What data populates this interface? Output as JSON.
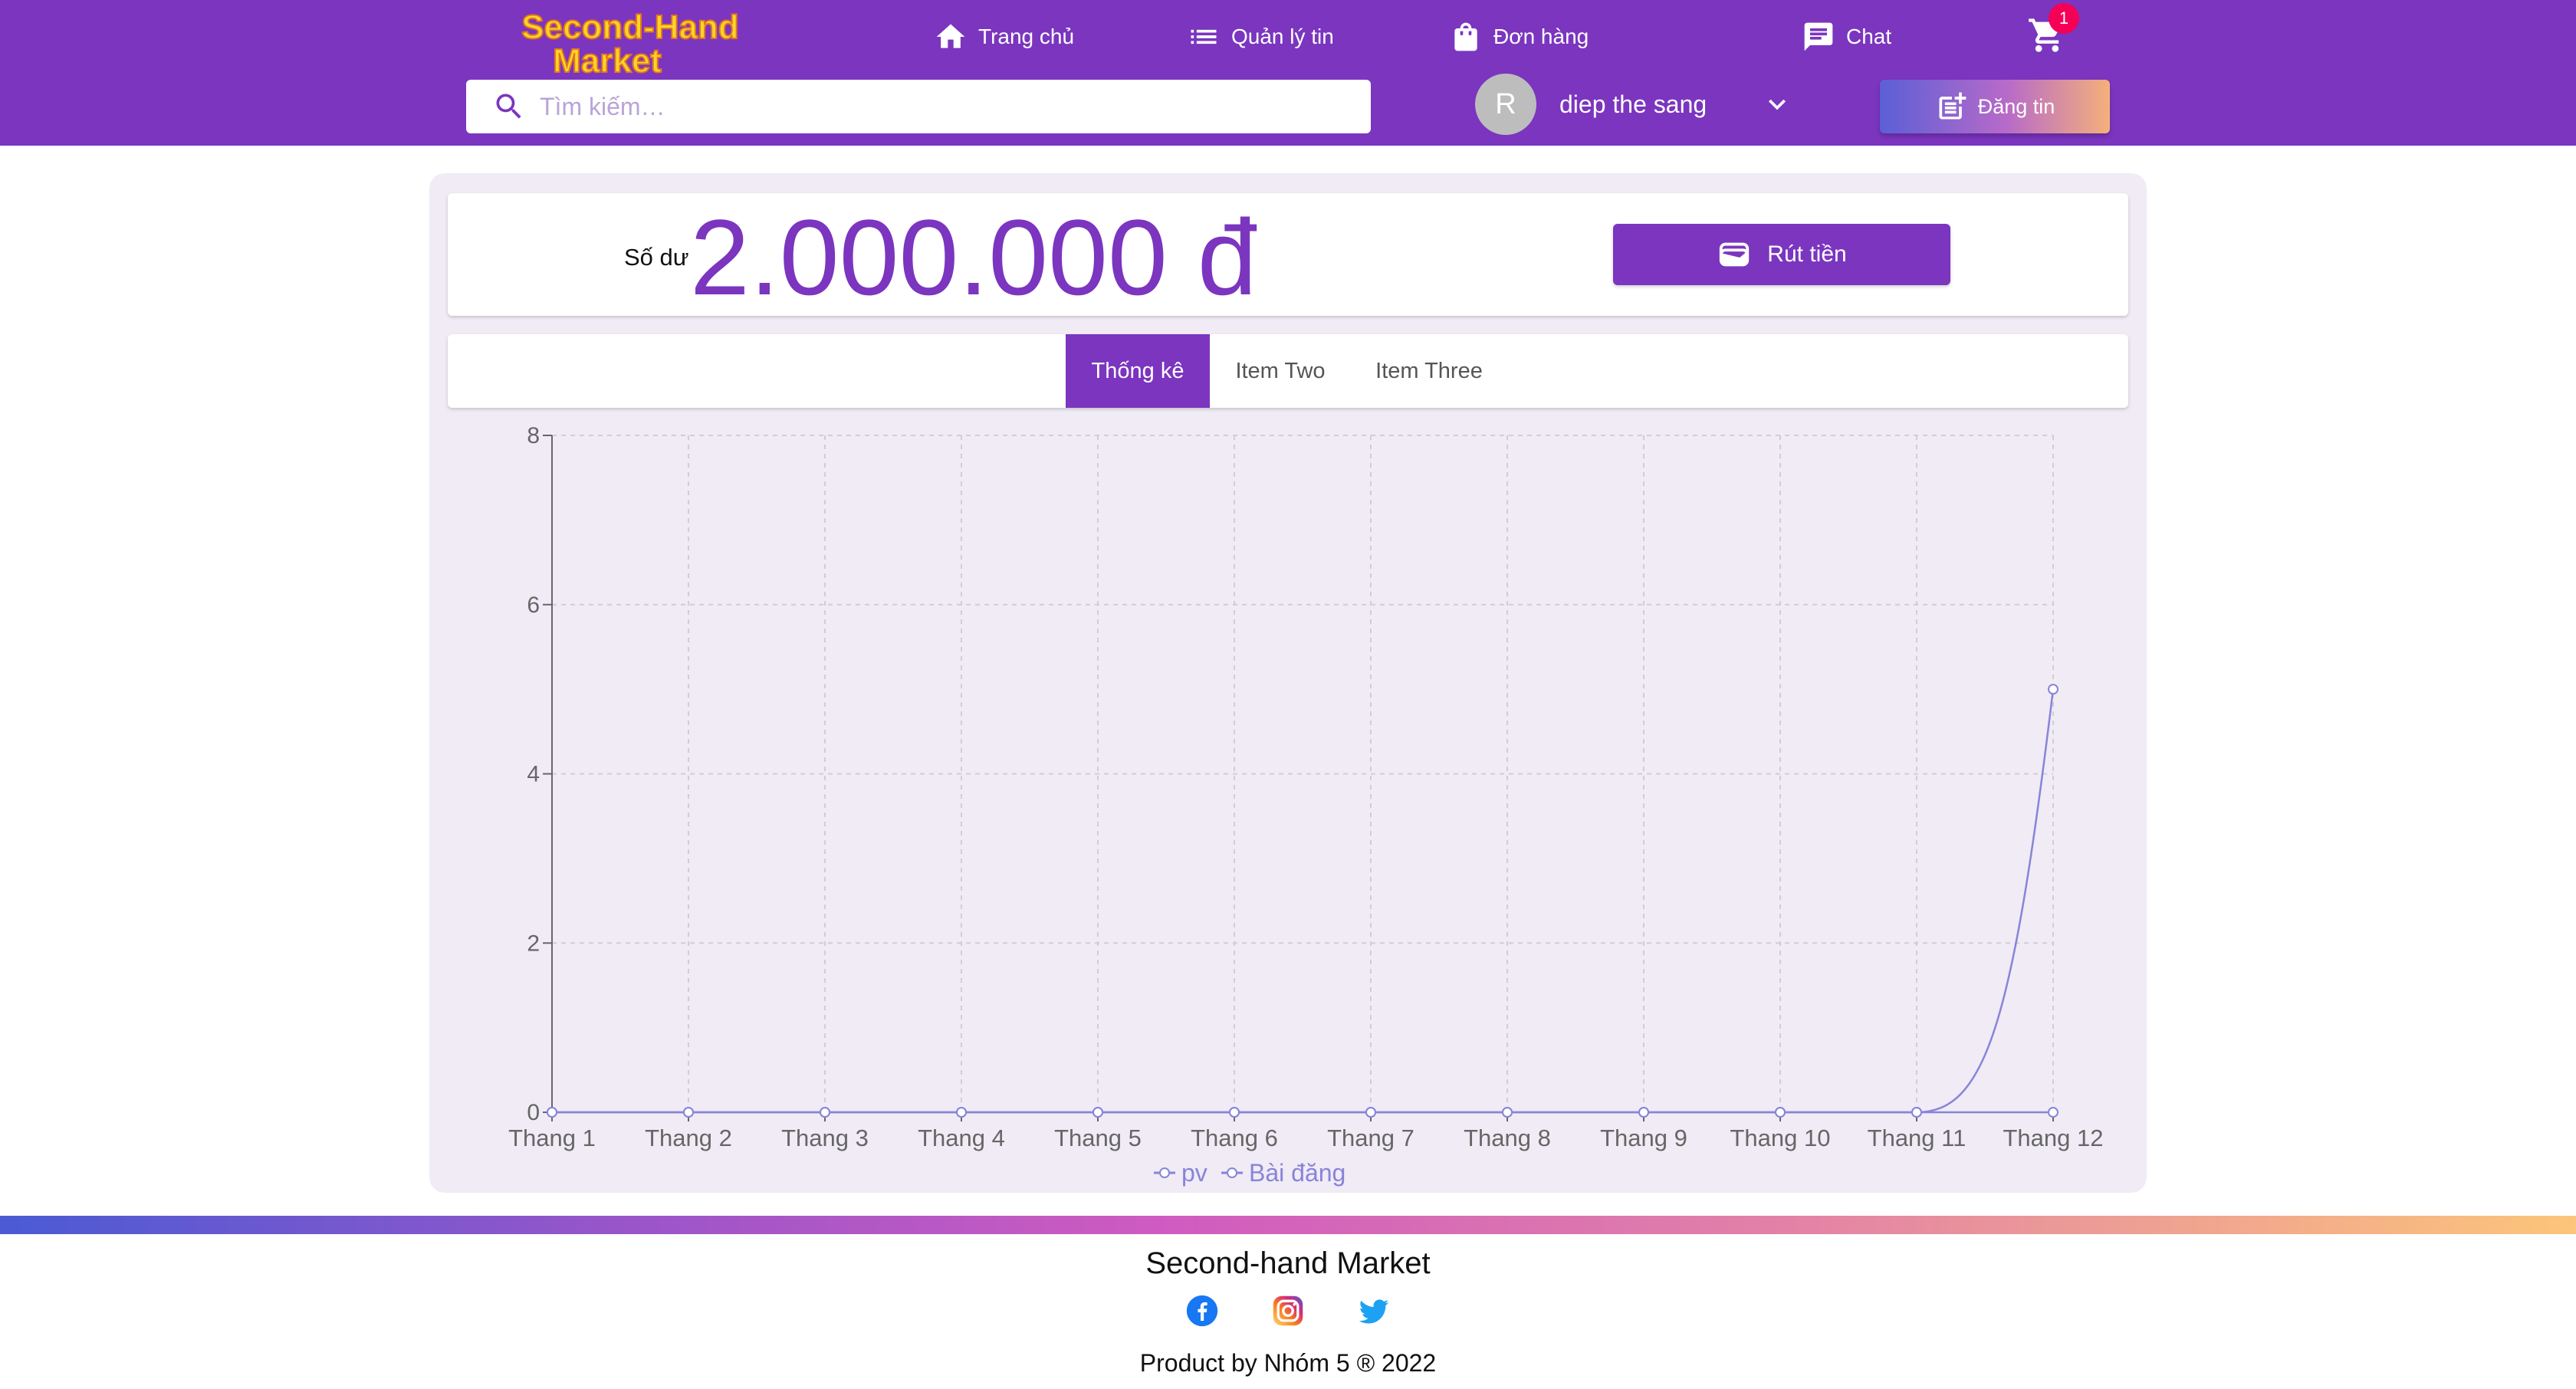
{
  "header": {
    "logo_line1": "Second-Hand",
    "logo_line2": "Market",
    "nav": [
      {
        "label": "Trang chủ",
        "icon": "home-icon"
      },
      {
        "label": "Quản lý tin",
        "icon": "list-icon"
      },
      {
        "label": "Đơn hàng",
        "icon": "shopping-bag-icon"
      },
      {
        "label": "Chat",
        "icon": "chat-icon"
      }
    ],
    "cart_count": "1",
    "search_placeholder": "Tìm kiếm…",
    "user": {
      "initial": "R",
      "name": "diep the sang"
    },
    "post_button_label": "Đăng tin"
  },
  "balance": {
    "label": "Số dư",
    "value": "2.000.000 đ",
    "withdraw_label": "Rút tiền"
  },
  "tabs": [
    {
      "label": "Thống kê",
      "active": true
    },
    {
      "label": "Item Two",
      "active": false
    },
    {
      "label": "Item Three",
      "active": false
    }
  ],
  "chart_data": {
    "type": "line",
    "categories": [
      "Thang 1",
      "Thang 2",
      "Thang 3",
      "Thang 4",
      "Thang 5",
      "Thang 6",
      "Thang 7",
      "Thang 8",
      "Thang 9",
      "Thang 10",
      "Thang 11",
      "Thang 12"
    ],
    "y_ticks": [
      "0",
      "2",
      "4",
      "6",
      "8"
    ],
    "ylim": [
      0,
      8
    ],
    "grid": true,
    "legend_position": "bottom",
    "series": [
      {
        "name": "pv",
        "values": [
          0,
          0,
          0,
          0,
          0,
          0,
          0,
          0,
          0,
          0,
          0,
          0
        ],
        "color": "#8884d8"
      },
      {
        "name": "Bài đăng",
        "values": [
          0,
          0,
          0,
          0,
          0,
          0,
          0,
          0,
          0,
          0,
          0,
          5
        ],
        "color": "#8884d8"
      }
    ]
  },
  "footer": {
    "title": "Second-hand Market",
    "social": [
      "facebook-icon",
      "instagram-icon",
      "twitter-icon"
    ],
    "credit": "Product by Nhóm 5 ® 2022"
  }
}
